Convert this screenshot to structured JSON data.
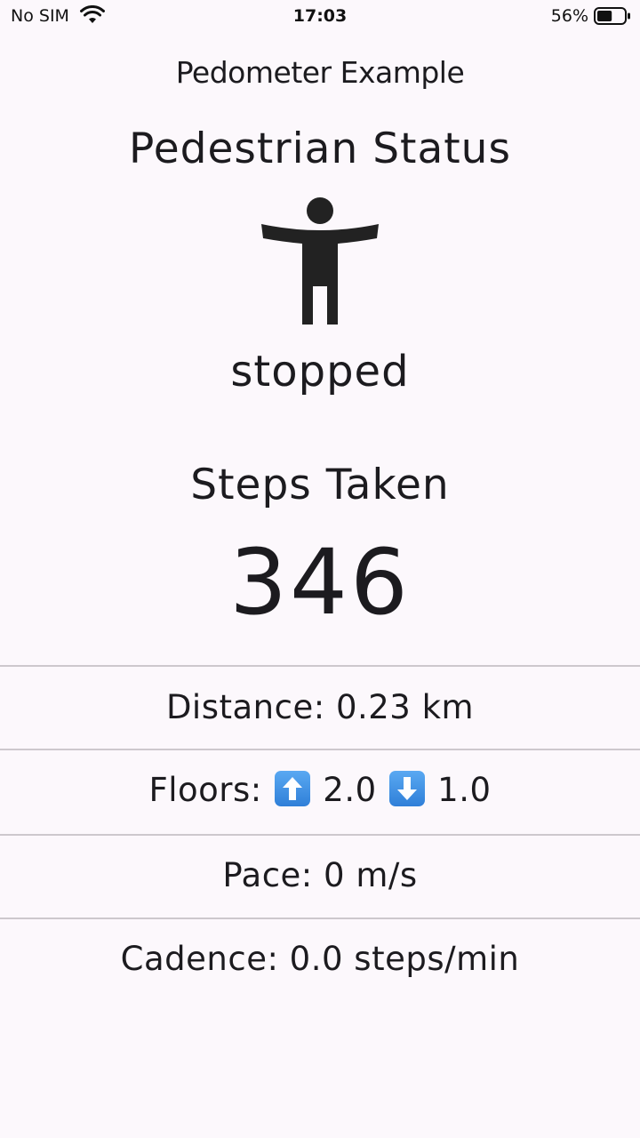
{
  "status_bar": {
    "carrier": "No SIM",
    "time": "17:03",
    "battery": "56%",
    "battery_level": 0.56
  },
  "app_title": "Pedometer Example",
  "pedestrian": {
    "heading": "Pedestrian Status",
    "icon": "standing-person-icon",
    "value": "stopped"
  },
  "steps": {
    "heading": "Steps Taken",
    "value": "346"
  },
  "metrics": {
    "distance": "Distance: 0.23 km",
    "floors_label": "Floors:",
    "floors_up": "2.0",
    "floors_down": "1.0",
    "up_icon": "arrow-up-icon",
    "down_icon": "arrow-down-icon",
    "pace": "Pace: 0 m/s",
    "cadence": "Cadence: 0.0 steps/min"
  }
}
